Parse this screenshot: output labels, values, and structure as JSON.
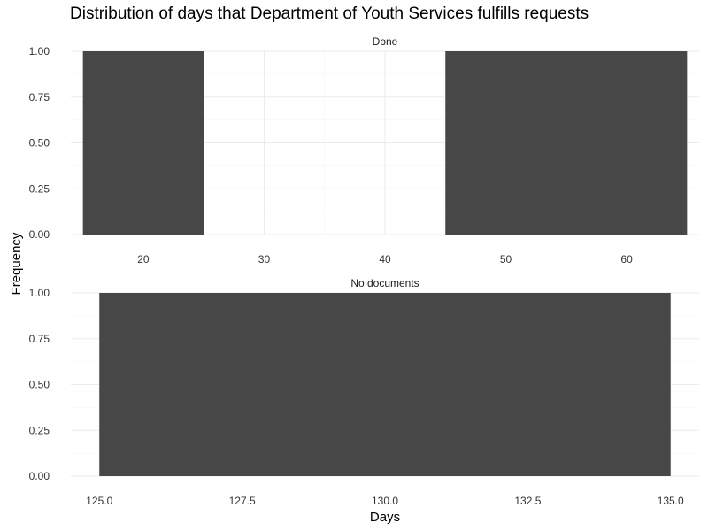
{
  "chart_data": {
    "type": "bar",
    "title": "Distribution of days that Department of Youth Services fulfills requests",
    "xlabel": "Days",
    "ylabel": "Frequency",
    "bar_color": "#474747",
    "grid": true,
    "panels": [
      {
        "strip": "Done",
        "xlim": [
          14,
          66
        ],
        "ylim": [
          0,
          1
        ],
        "x_ticks": [
          20,
          30,
          40,
          50,
          60
        ],
        "x_tick_labels": [
          "20",
          "30",
          "40",
          "50",
          "60"
        ],
        "y_ticks": [
          0,
          0.25,
          0.5,
          0.75,
          1
        ],
        "y_tick_labels": [
          "0.00",
          "0.25",
          "0.50",
          "0.75",
          "1.00"
        ],
        "bins": [
          {
            "x_start": 15,
            "x_end": 25,
            "count": 1
          },
          {
            "x_start": 25,
            "x_end": 35,
            "count": 0
          },
          {
            "x_start": 35,
            "x_end": 45,
            "count": 0
          },
          {
            "x_start": 45,
            "x_end": 55,
            "count": 1
          },
          {
            "x_start": 55,
            "x_end": 65,
            "count": 1
          }
        ]
      },
      {
        "strip": "No documents",
        "xlim": [
          124.5,
          135.5
        ],
        "ylim": [
          0,
          1
        ],
        "x_ticks": [
          125,
          127.5,
          130,
          132.5,
          135
        ],
        "x_tick_labels": [
          "125.0",
          "127.5",
          "130.0",
          "132.5",
          "135.0"
        ],
        "y_ticks": [
          0,
          0.25,
          0.5,
          0.75,
          1
        ],
        "y_tick_labels": [
          "0.00",
          "0.25",
          "0.50",
          "0.75",
          "1.00"
        ],
        "bins": [
          {
            "x_start": 125,
            "x_end": 135,
            "count": 1
          }
        ]
      }
    ]
  }
}
